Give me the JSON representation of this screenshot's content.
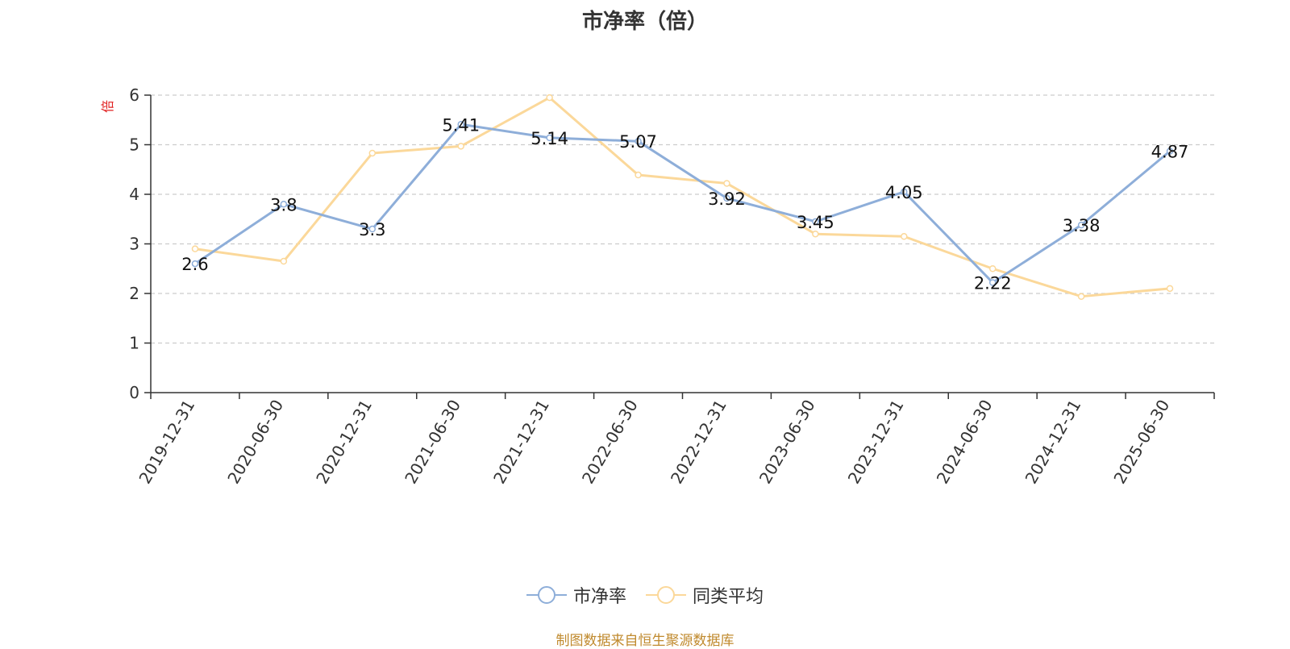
{
  "chart_data": {
    "type": "line",
    "title": "市净率（倍）",
    "ylabel": "倍",
    "xlabel": "",
    "ylim": [
      0,
      6
    ],
    "yticks": [
      0,
      1,
      2,
      3,
      4,
      5,
      6
    ],
    "grid": true,
    "legend_position": "bottom",
    "categories": [
      "2019-12-31",
      "2020-06-30",
      "2020-12-31",
      "2021-06-30",
      "2021-12-31",
      "2022-06-30",
      "2022-12-31",
      "2023-06-30",
      "2023-12-31",
      "2024-06-30",
      "2024-12-31",
      "2025-06-30"
    ],
    "series": [
      {
        "name": "市净率",
        "color": "#8eaed9",
        "show_labels": true,
        "values": [
          2.6,
          3.8,
          3.3,
          5.41,
          5.14,
          5.07,
          3.92,
          3.45,
          4.05,
          2.22,
          3.38,
          4.87
        ]
      },
      {
        "name": "同类平均",
        "color": "#fbd89a",
        "show_labels": false,
        "values": [
          2.9,
          2.65,
          4.83,
          4.97,
          5.95,
          4.39,
          4.22,
          3.2,
          3.15,
          2.5,
          1.94,
          2.1
        ]
      }
    ],
    "source": "制图数据来自恒生聚源数据库"
  }
}
